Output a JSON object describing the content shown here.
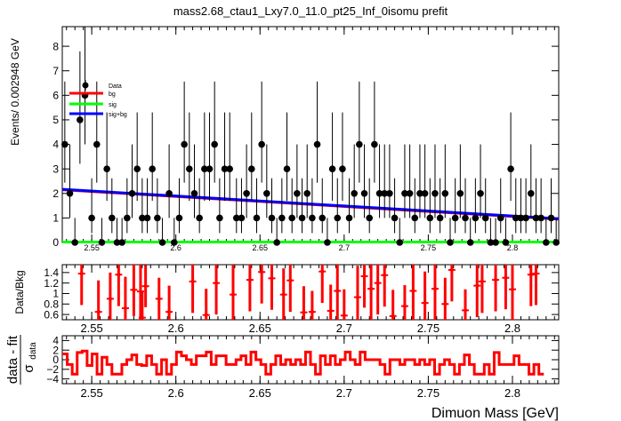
{
  "title": "mass2.68_ctau1_Lxy7.0_11.0_pt25_Inf_0isomu   prefit",
  "colors": {
    "data": "#000000",
    "bg": "#ff0000",
    "sig": "#00ff00",
    "sigbg": "#0000ff",
    "residual": "#ff0000"
  },
  "chart_data": [
    {
      "type": "scatter",
      "ylabel": "Events/ 0.002948 GeV",
      "xlim": [
        2.5325,
        2.8275
      ],
      "ylim": [
        0,
        8.8
      ],
      "yticks": [
        0,
        1,
        2,
        3,
        4,
        5,
        6,
        7,
        8
      ],
      "xticks": [
        2.55,
        2.6,
        2.65,
        2.7,
        2.75,
        2.8
      ],
      "xticklabels": [
        "2.55",
        "2.6",
        "2.65",
        "2.7",
        "2.75",
        "2.8"
      ],
      "legend": {
        "placement": "top-left",
        "entries": [
          {
            "label": "Data",
            "style": "marker"
          },
          {
            "label": "bg",
            "style": "line"
          },
          {
            "label": "sig",
            "style": "line"
          },
          {
            "label": "sig+bg",
            "style": "line"
          }
        ]
      },
      "data_points": {
        "x": [
          2.534,
          2.537,
          2.54,
          2.543,
          2.546,
          2.55,
          2.553,
          2.556,
          2.559,
          2.562,
          2.565,
          2.568,
          2.571,
          2.574,
          2.577,
          2.58,
          2.583,
          2.586,
          2.589,
          2.592,
          2.596,
          2.599,
          2.602,
          2.605,
          2.608,
          2.611,
          2.614,
          2.617,
          2.62,
          2.623,
          2.626,
          2.629,
          2.632,
          2.636,
          2.639,
          2.642,
          2.645,
          2.648,
          2.651,
          2.654,
          2.657,
          2.66,
          2.663,
          2.666,
          2.669,
          2.672,
          2.675,
          2.678,
          2.681,
          2.684,
          2.687,
          2.69,
          2.693,
          2.696,
          2.699,
          2.703,
          2.706,
          2.709,
          2.712,
          2.715,
          2.718,
          2.721,
          2.724,
          2.727,
          2.73,
          2.733,
          2.736,
          2.739,
          2.742,
          2.745,
          2.748,
          2.751,
          2.754,
          2.757,
          2.76,
          2.763,
          2.766,
          2.769,
          2.772,
          2.775,
          2.778,
          2.781,
          2.784,
          2.787,
          2.79,
          2.793,
          2.796,
          2.799,
          2.802,
          2.805,
          2.808,
          2.811,
          2.814,
          2.817,
          2.82,
          2.823,
          2.826
        ],
        "y": [
          4,
          2,
          0,
          5,
          6,
          1,
          4,
          0,
          3,
          1,
          0,
          0,
          1,
          2,
          3,
          1,
          1,
          3,
          1,
          0,
          2,
          0,
          1,
          4,
          3,
          2,
          1,
          3,
          3,
          4,
          1,
          3,
          3,
          1,
          1,
          2,
          3,
          1,
          4,
          2,
          1,
          0,
          1,
          3,
          1,
          2,
          1,
          2,
          1,
          4,
          1,
          0,
          3,
          1,
          3,
          1,
          2,
          4,
          2,
          1,
          4,
          2,
          2,
          2,
          1,
          0,
          2,
          2,
          1,
          2,
          2,
          1,
          2,
          1,
          2,
          0,
          1,
          2,
          1,
          0,
          1,
          2,
          1,
          0,
          0,
          1,
          0,
          3,
          1,
          1,
          1,
          2,
          1,
          1,
          0,
          1,
          0
        ]
      },
      "curves": {
        "bg": {
          "x": [
            2.5325,
            2.8275
          ],
          "y": [
            2.15,
            0.95
          ]
        },
        "sig": {
          "x": [
            2.5325,
            2.8275
          ],
          "y": [
            0.02,
            0.02
          ]
        },
        "sig+bg": {
          "x": [
            2.5325,
            2.8275
          ],
          "y": [
            2.17,
            0.97
          ]
        }
      }
    },
    {
      "type": "scatter",
      "ylabel": "Data/Bkg",
      "xlim": [
        2.5325,
        2.8275
      ],
      "ylim": [
        0.5,
        1.55
      ],
      "yticks": [
        0.6,
        0.8,
        1.0,
        1.2,
        1.4
      ],
      "yticklabels": [
        "0.6",
        "0.8",
        "1",
        "1.2",
        "1.4"
      ],
      "xticks": [
        2.55,
        2.6,
        2.65,
        2.7,
        2.75,
        2.8
      ],
      "xticklabels": [
        "2.55",
        "2.6",
        "2.65",
        "2.7",
        "2.75",
        "2.8"
      ],
      "points": {
        "x": [
          2.544,
          2.554,
          2.561,
          2.566,
          2.57,
          2.575,
          2.579,
          2.58,
          2.582,
          2.59,
          2.596,
          2.61,
          2.618,
          2.624,
          2.634,
          2.644,
          2.651,
          2.657,
          2.664,
          2.668,
          2.676,
          2.681,
          2.687,
          2.692,
          2.696,
          2.7,
          2.708,
          2.712,
          2.716,
          2.72,
          2.724,
          2.729,
          2.736,
          2.741,
          2.748,
          2.754,
          2.76,
          2.764,
          2.772,
          2.779,
          2.782,
          2.79,
          2.796,
          2.8,
          2.811,
          2.814
        ],
        "y": [
          1.38,
          0.65,
          0.9,
          1.36,
          0.72,
          1.07,
          1.04,
          0.54,
          1.14,
          0.9,
          0.65,
          1.23,
          0.59,
          1.2,
          0.98,
          1.26,
          1.41,
          1.29,
          0.98,
          1.25,
          0.64,
          0.65,
          1.42,
          0.67,
          1.05,
          0.58,
          0.93,
          1.33,
          1.09,
          1.2,
          1.35,
          0.57,
          0.76,
          1.05,
          0.82,
          1.09,
          0.8,
          1.45,
          0.68,
          1.15,
          1.23,
          1.26,
          1.3,
          1.08,
          1.36,
          1.38
        ],
        "err": [
          0.6,
          0.6,
          0.5,
          0.6,
          0.6,
          0.5,
          0.6,
          0.5,
          0.4,
          0.4,
          0.5,
          0.6,
          0.5,
          0.6,
          0.6,
          0.6,
          0.6,
          0.6,
          0.5,
          0.6,
          0.5,
          0.4,
          0.6,
          0.5,
          0.6,
          0.5,
          0.6,
          0.6,
          0.6,
          0.6,
          0.6,
          0.5,
          0.4,
          0.6,
          0.6,
          0.6,
          0.5,
          0.6,
          0.4,
          0.6,
          0.6,
          0.6,
          0.6,
          0.6,
          0.6,
          0.6
        ]
      }
    },
    {
      "type": "line",
      "ylabel_main": "data - fit",
      "ylabel_sub": "σ",
      "ylabel_subscript": "data",
      "xlabel": "Dimuon Mass [GeV]",
      "xlim": [
        2.5325,
        2.8275
      ],
      "ylim": [
        -5,
        5
      ],
      "yticks": [
        -4,
        -2,
        0,
        2,
        4
      ],
      "yticklabels": [
        "−4",
        "−2",
        "0",
        "2",
        "4"
      ],
      "xticks": [
        2.55,
        2.6,
        2.65,
        2.7,
        2.75,
        2.8
      ],
      "xticklabels": [
        "2.55",
        "2.6",
        "2.65",
        "2.7",
        "2.75",
        "2.8"
      ],
      "bin_width": 0.00295,
      "pulls": [
        1.2,
        -1.0,
        -3.0,
        1.5,
        1.8,
        -1.2,
        1.2,
        -3.0,
        0.5,
        -1.0,
        -3.0,
        -3.0,
        -1.0,
        0.0,
        1.0,
        -1.0,
        -1.2,
        0.8,
        -1.0,
        -3.0,
        0.0,
        -3.0,
        -1.0,
        1.6,
        0.8,
        0.0,
        -1.0,
        0.8,
        0.8,
        1.6,
        -1.0,
        0.8,
        0.8,
        -1.0,
        -1.0,
        0.0,
        0.8,
        -1.0,
        1.6,
        0.0,
        -1.0,
        -3.0,
        -1.0,
        0.8,
        -1.0,
        0.0,
        -1.0,
        0.0,
        -1.0,
        1.6,
        -1.0,
        -3.0,
        0.8,
        -1.0,
        0.8,
        -1.0,
        0.0,
        1.6,
        0.0,
        -1.0,
        1.6,
        0.0,
        0.0,
        0.0,
        -1.0,
        -3.0,
        0.0,
        0.0,
        -1.0,
        0.0,
        0.0,
        -1.0,
        0.0,
        -1.0,
        0.0,
        -3.0,
        -1.0,
        0.0,
        -1.0,
        -3.0,
        -1.0,
        1.0,
        -1.0,
        -3.0,
        -3.0,
        -1.0,
        -3.0,
        1.5,
        -1.0,
        -1.0,
        -1.0,
        0.8,
        -1.0,
        -1.0,
        -3.0,
        -1.0,
        -3.0
      ]
    }
  ]
}
